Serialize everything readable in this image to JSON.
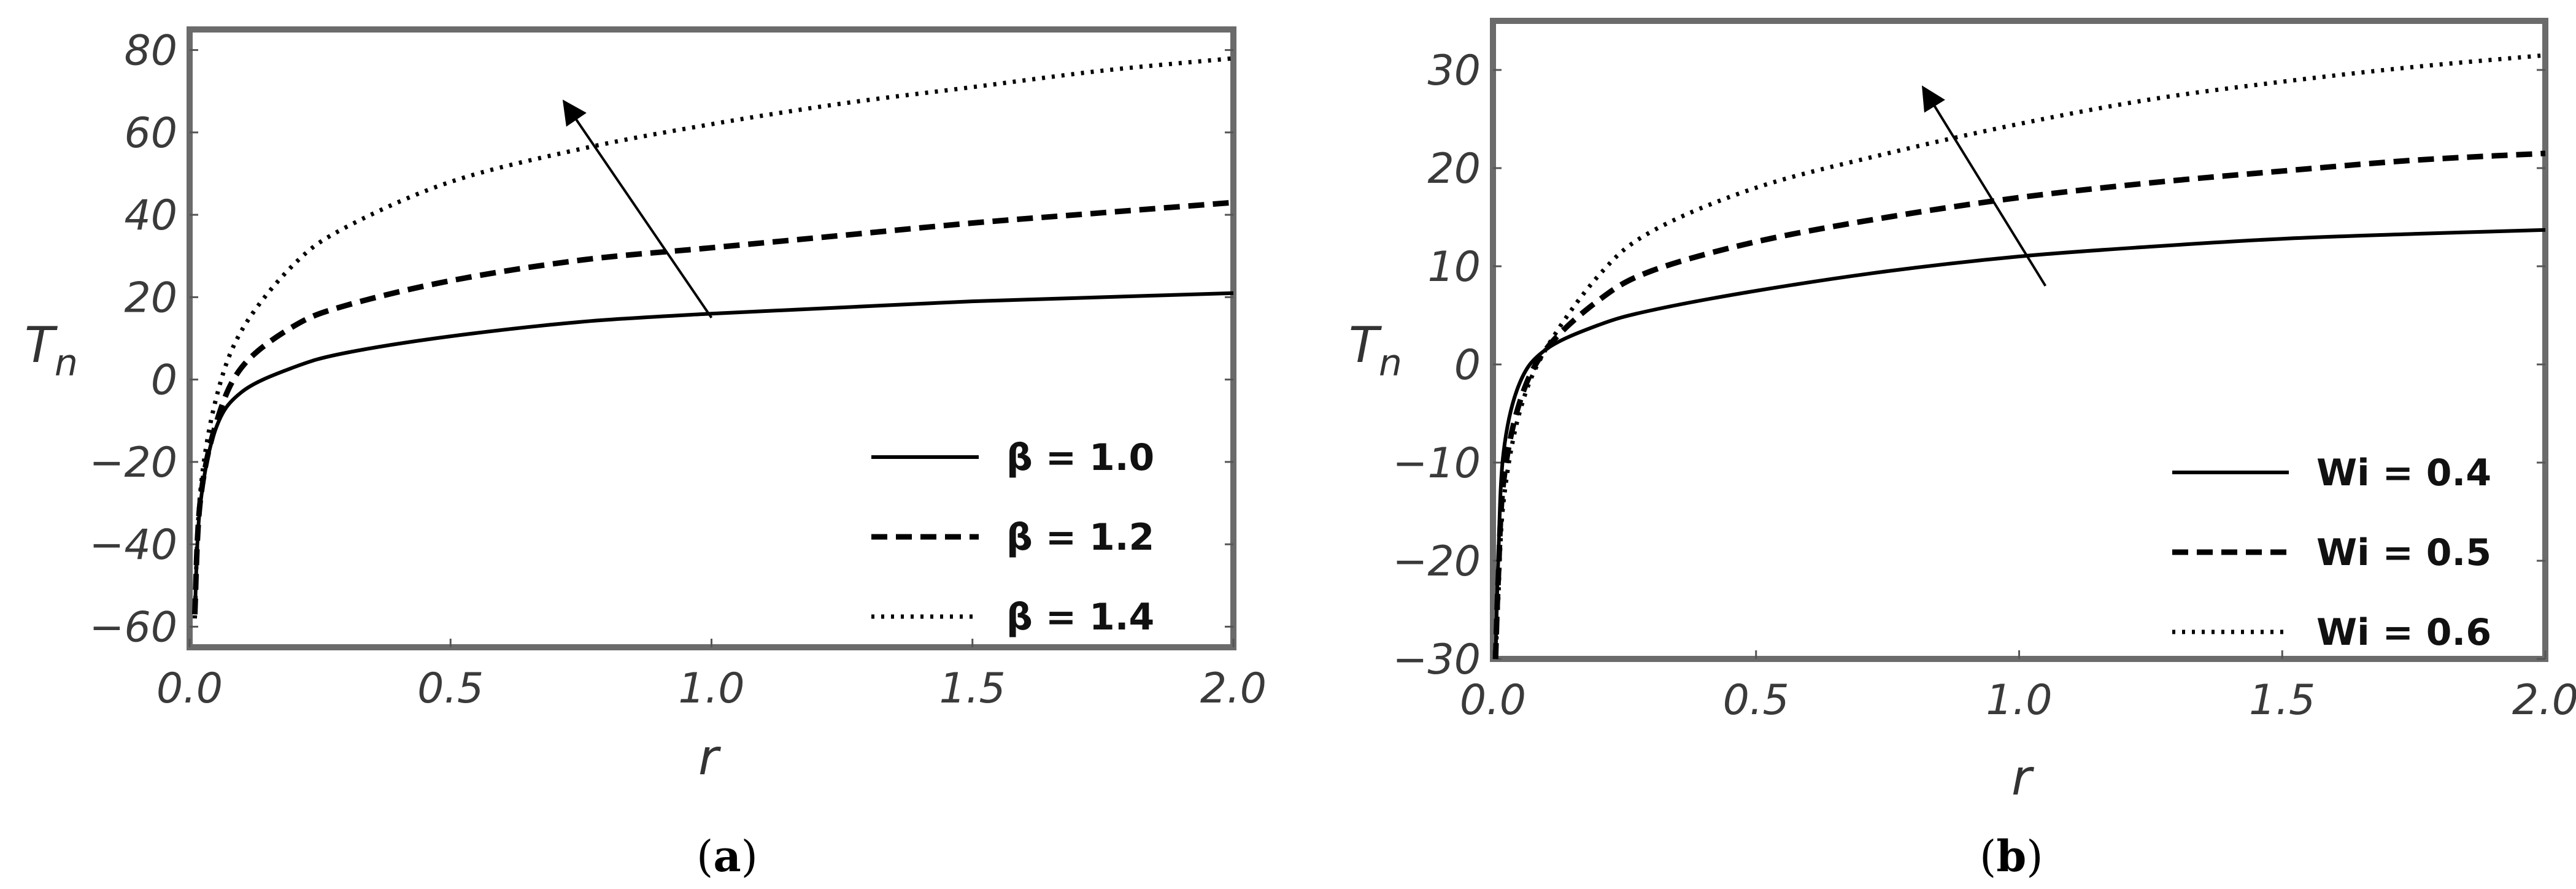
{
  "chart_data": [
    {
      "type": "line",
      "caption_letter": "a",
      "xlabel": "r",
      "ylabel": "T",
      "ylabel_sub": "n",
      "xlim": [
        0.0,
        2.0
      ],
      "ylim": [
        -65,
        85
      ],
      "xticks": [
        "0.0",
        "0.5",
        "1.0",
        "1.5",
        "2.0"
      ],
      "xtick_values": [
        0.0,
        0.5,
        1.0,
        1.5,
        2.0
      ],
      "yticks": [
        "−60",
        "−40",
        "−20",
        "0",
        "20",
        "40",
        "60",
        "80"
      ],
      "ytick_values": [
        -60,
        -40,
        -20,
        0,
        20,
        40,
        60,
        80
      ],
      "legend_position": "bottom-right",
      "arrow": {
        "from": [
          1.0,
          15
        ],
        "to": [
          0.72,
          67
        ]
      },
      "series": [
        {
          "name": "β = 1.0",
          "style": "solid",
          "x": [
            0.01,
            0.02,
            0.05,
            0.1,
            0.2,
            0.3,
            0.5,
            0.75,
            1.0,
            1.25,
            1.5,
            1.75,
            2.0
          ],
          "y": [
            -57,
            -31,
            -12,
            -3,
            3,
            6.5,
            10.5,
            14,
            16,
            17.5,
            19,
            20,
            21
          ]
        },
        {
          "name": "β = 1.2",
          "style": "dashed",
          "x": [
            0.01,
            0.02,
            0.05,
            0.1,
            0.2,
            0.3,
            0.5,
            0.75,
            1.0,
            1.25,
            1.5,
            1.75,
            2.0
          ],
          "y": [
            -57,
            -30,
            -11,
            3,
            13,
            18,
            24,
            29,
            32,
            35,
            38,
            40.5,
            43
          ]
        },
        {
          "name": "β = 1.4",
          "style": "dotted",
          "x": [
            0.01,
            0.02,
            0.05,
            0.1,
            0.2,
            0.3,
            0.5,
            0.75,
            1.0,
            1.25,
            1.5,
            1.75,
            2.0
          ],
          "y": [
            -58,
            -28,
            -5,
            12,
            28,
            37,
            48,
            56,
            62,
            67,
            71,
            75,
            78
          ]
        }
      ]
    },
    {
      "type": "line",
      "caption_letter": "b",
      "xlabel": "r",
      "ylabel": "T",
      "ylabel_sub": "n",
      "xlim": [
        0.0,
        2.0
      ],
      "ylim": [
        -30,
        35
      ],
      "xticks": [
        "0.0",
        "0.5",
        "1.0",
        "1.5",
        "2.0"
      ],
      "xtick_values": [
        0.0,
        0.5,
        1.0,
        1.5,
        2.0
      ],
      "yticks": [
        "−30",
        "−20",
        "−10",
        "0",
        "10",
        "20",
        "30"
      ],
      "ytick_values": [
        -30,
        -20,
        -10,
        0,
        10,
        20,
        30
      ],
      "legend_position": "bottom-right",
      "arrow": {
        "from": [
          1.05,
          8
        ],
        "to": [
          0.82,
          28
        ]
      },
      "series": [
        {
          "name": "Wi = 0.4",
          "style": "solid",
          "x": [
            0.005,
            0.01,
            0.02,
            0.05,
            0.1,
            0.2,
            0.3,
            0.5,
            0.75,
            1.0,
            1.25,
            1.5,
            1.75,
            2.0
          ],
          "y": [
            -30,
            -20,
            -9,
            -2,
            1.5,
            4,
            5.5,
            7.5,
            9.5,
            11,
            12,
            12.8,
            13.3,
            13.7
          ]
        },
        {
          "name": "Wi = 0.5",
          "style": "dashed",
          "x": [
            0.005,
            0.01,
            0.02,
            0.05,
            0.1,
            0.2,
            0.3,
            0.5,
            0.75,
            1.0,
            1.25,
            1.5,
            1.75,
            2.0
          ],
          "y": [
            -30,
            -22,
            -12,
            -4,
            1.5,
            6.5,
            9.5,
            12.5,
            15,
            17,
            18.5,
            19.7,
            20.8,
            21.5
          ]
        },
        {
          "name": "Wi = 0.6",
          "style": "dotted",
          "x": [
            0.005,
            0.01,
            0.02,
            0.05,
            0.1,
            0.2,
            0.3,
            0.5,
            0.75,
            1.0,
            1.25,
            1.5,
            1.75,
            2.0
          ],
          "y": [
            -30,
            -24,
            -14,
            -5,
            1.5,
            9,
            13.5,
            18,
            21.5,
            24.5,
            27,
            28.8,
            30.3,
            31.5
          ]
        }
      ]
    }
  ]
}
